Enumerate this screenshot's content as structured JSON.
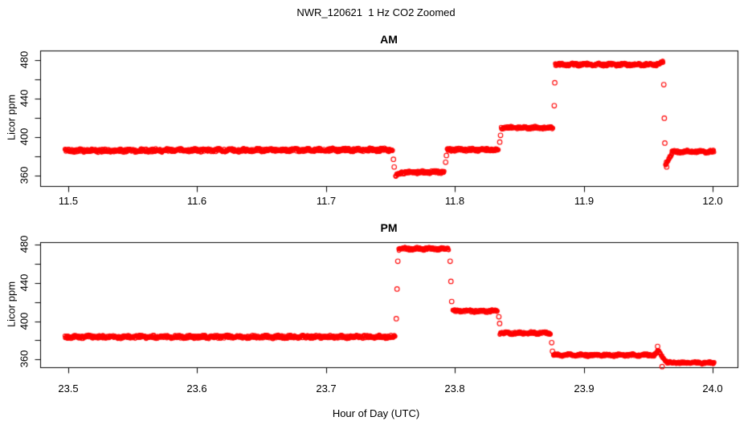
{
  "chart_data": {
    "type": "scatter",
    "title": "NWR_120621  1 Hz CO2 Zoomed",
    "xlabel": "Hour of Day (UTC)",
    "ylabel": "Licor ppm",
    "marker": "open-circle",
    "marker_color": "#FF0000",
    "axis_color": "#000000",
    "grid": false,
    "legend": null,
    "panels": [
      {
        "title": "AM",
        "xlim": [
          11.5,
          12.0
        ],
        "ylim": [
          360,
          480
        ],
        "x_ticks": {
          "values": [
            11.5,
            11.6,
            11.7,
            11.8,
            11.9,
            12.0
          ],
          "labels": [
            "11.5",
            "11.6",
            "11.7",
            "11.8",
            "11.9",
            "12.0"
          ]
        },
        "y_ticks": {
          "values": [
            360,
            380,
            400,
            420,
            440,
            460,
            480
          ],
          "labels": [
            "360",
            "",
            "400",
            "",
            "440",
            "",
            "480"
          ]
        },
        "segments": [
          {
            "t": [
              11.497,
              11.7515
            ],
            "ppm": [
              386,
              387
            ],
            "noise": 1.8
          },
          {
            "t": [
              11.7535,
              11.757
            ],
            "ppm": [
              359,
              363
            ],
            "noise": 1.2
          },
          {
            "t": [
              11.757,
              11.7915
            ],
            "ppm": [
              363,
              364
            ],
            "noise": 1.5
          },
          {
            "t": [
              11.7935,
              11.8335
            ],
            "ppm": [
              387,
              387
            ],
            "noise": 1.6
          },
          {
            "t": [
              11.8355,
              11.876
            ],
            "ppm": [
              410,
              410
            ],
            "noise": 1.4
          },
          {
            "t": [
              11.8775,
              11.956
            ],
            "ppm": [
              476,
              476
            ],
            "noise": 1.5
          },
          {
            "t": [
              11.956,
              11.9615
            ],
            "ppm": [
              476,
              479
            ],
            "noise": 1.3
          },
          {
            "t": [
              11.963,
              11.968
            ],
            "ppm": [
              372,
              383
            ],
            "noise": 1.5
          },
          {
            "t": [
              11.968,
              12.001
            ],
            "ppm": [
              385,
              385
            ],
            "noise": 1.4
          }
        ],
        "transition_points": [
          [
            11.752,
            377
          ],
          [
            11.7526,
            369
          ],
          [
            11.7925,
            374
          ],
          [
            11.7931,
            381
          ],
          [
            11.8345,
            395
          ],
          [
            11.8351,
            402
          ],
          [
            11.8768,
            433
          ],
          [
            11.8772,
            457
          ],
          [
            11.9618,
            455
          ],
          [
            11.9622,
            420
          ],
          [
            11.9626,
            394
          ],
          [
            11.964,
            369
          ]
        ]
      },
      {
        "title": "PM",
        "xlim": [
          23.5,
          24.0
        ],
        "ylim": [
          360,
          480
        ],
        "x_ticks": {
          "values": [
            23.5,
            23.6,
            23.7,
            23.8,
            23.9,
            24.0
          ],
          "labels": [
            "23.5",
            "23.6",
            "23.7",
            "23.8",
            "23.9",
            "24.0"
          ]
        },
        "y_ticks": {
          "values": [
            360,
            380,
            400,
            420,
            440,
            460,
            480
          ],
          "labels": [
            "360",
            "",
            "400",
            "",
            "440",
            "",
            "480"
          ]
        },
        "segments": [
          {
            "t": [
              23.497,
              23.7535
            ],
            "ppm": [
              384,
              384
            ],
            "noise": 1.7
          },
          {
            "t": [
              23.756,
              23.795
            ],
            "ppm": [
              476,
              476
            ],
            "noise": 1.4
          },
          {
            "t": [
              23.798,
              23.833
            ],
            "ppm": [
              411,
              411
            ],
            "noise": 1.3
          },
          {
            "t": [
              23.8345,
              23.874
            ],
            "ppm": [
              388,
              388
            ],
            "noise": 1.3
          },
          {
            "t": [
              23.876,
              23.9545
            ],
            "ppm": [
              365,
              365
            ],
            "noise": 1.3
          },
          {
            "t": [
              23.9545,
              23.958
            ],
            "ppm": [
              365,
              370
            ],
            "noise": 1.1
          },
          {
            "t": [
              23.958,
              23.964
            ],
            "ppm": [
              368,
              358
            ],
            "noise": 1.1
          },
          {
            "t": [
              23.964,
              24.001
            ],
            "ppm": [
              357,
              357
            ],
            "noise": 1.2
          }
        ],
        "transition_points": [
          [
            23.7542,
            403
          ],
          [
            23.7548,
            434
          ],
          [
            23.7554,
            463
          ],
          [
            23.796,
            463
          ],
          [
            23.7966,
            442
          ],
          [
            23.7972,
            421
          ],
          [
            23.8338,
            405
          ],
          [
            23.8344,
            398
          ],
          [
            23.8748,
            378
          ],
          [
            23.8754,
            369
          ],
          [
            23.957,
            374
          ],
          [
            23.9605,
            353
          ]
        ]
      }
    ]
  }
}
